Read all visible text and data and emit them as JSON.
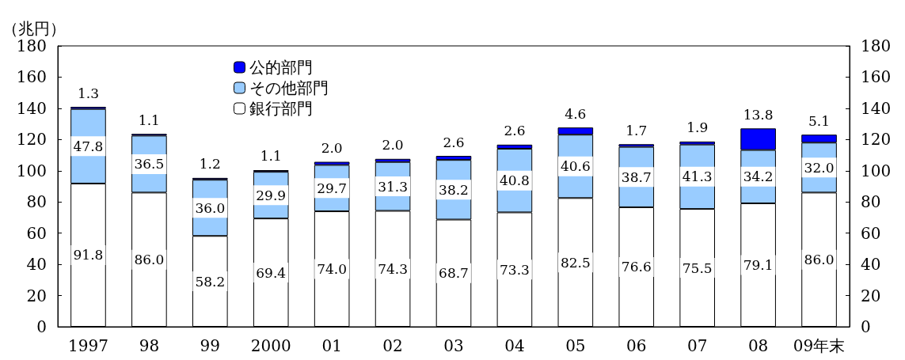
{
  "chart_data": {
    "type": "bar",
    "stacked": true,
    "ylabel": "（兆円）",
    "categories": [
      "1997",
      "98",
      "99",
      "2000",
      "01",
      "02",
      "03",
      "04",
      "05",
      "06",
      "07",
      "08",
      "09年末"
    ],
    "series": [
      {
        "name": "銀行部門",
        "color": "#ffffff",
        "values": [
          91.8,
          86.0,
          58.2,
          69.4,
          74.0,
          74.3,
          68.7,
          73.3,
          82.5,
          76.6,
          75.5,
          79.1,
          86.0
        ],
        "value_labels": [
          "91.8",
          "86.0",
          "58.2",
          "69.4",
          "74.0",
          "74.3",
          "68.7",
          "73.3",
          "82.5",
          "76.6",
          "75.5",
          "79.1",
          "86.0"
        ]
      },
      {
        "name": "その他部門",
        "color": "#99ccff",
        "values": [
          47.8,
          36.5,
          36.0,
          29.9,
          29.7,
          31.3,
          38.2,
          40.8,
          40.6,
          38.7,
          41.3,
          34.2,
          32.0
        ],
        "value_labels": [
          "47.8",
          "36.5",
          "36.0",
          "29.9",
          "29.7",
          "31.3",
          "38.2",
          "40.8",
          "40.6",
          "38.7",
          "41.3",
          "34.2",
          "32.0"
        ]
      },
      {
        "name": "公的部門",
        "color": "#0000ff",
        "values": [
          1.3,
          1.1,
          1.2,
          1.1,
          2.0,
          2.0,
          2.6,
          2.6,
          4.6,
          1.7,
          1.9,
          13.8,
          5.1
        ],
        "value_labels": [
          "1.3",
          "1.1",
          "1.2",
          "1.1",
          "2.0",
          "2.0",
          "2.6",
          "2.6",
          "4.6",
          "1.7",
          "1.9",
          "13.8",
          "5.1"
        ]
      }
    ],
    "ylim": [
      0,
      180
    ],
    "yticks": [
      0,
      20,
      40,
      60,
      80,
      100,
      120,
      140,
      160,
      180
    ],
    "y2lim": [
      0,
      180
    ],
    "y2ticks": [
      0,
      20,
      40,
      60,
      80,
      100,
      120,
      140,
      160,
      180
    ],
    "grid": false,
    "legend": "top left"
  }
}
